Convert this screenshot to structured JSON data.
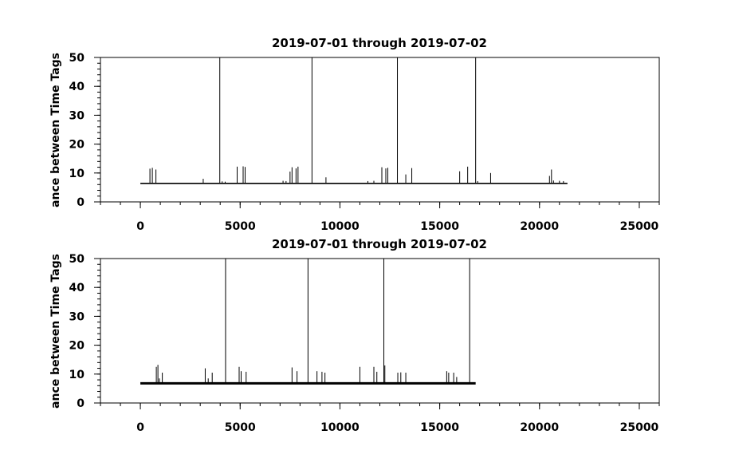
{
  "chart_data": [
    {
      "type": "line",
      "title": "2019-07-01 through 2019-07-02",
      "xlabel": "",
      "ylabel": "ance between Time Tags",
      "xlim": [
        -2000,
        26000
      ],
      "ylim": [
        0,
        50
      ],
      "x_ticks": [
        0,
        5000,
        10000,
        15000,
        20000,
        25000
      ],
      "y_ticks": [
        0,
        10,
        20,
        30,
        40,
        50
      ],
      "grid": false,
      "legend": "none",
      "series": [
        {
          "baseline": 6.4,
          "x_range": [
            0,
            21400
          ],
          "spikes": [
            {
              "x": 480,
              "y": 11.5
            },
            {
              "x": 600,
              "y": 11.8
            },
            {
              "x": 780,
              "y": 11.2
            },
            {
              "x": 3150,
              "y": 8.0
            },
            {
              "x": 3980,
              "y": 50
            },
            {
              "x": 4100,
              "y": 7.1
            },
            {
              "x": 4250,
              "y": 7.0
            },
            {
              "x": 4850,
              "y": 12.2
            },
            {
              "x": 5150,
              "y": 12.3
            },
            {
              "x": 5250,
              "y": 12.1
            },
            {
              "x": 7150,
              "y": 7.3
            },
            {
              "x": 7300,
              "y": 7.2
            },
            {
              "x": 7500,
              "y": 10.5
            },
            {
              "x": 7600,
              "y": 12.0
            },
            {
              "x": 7800,
              "y": 11.6
            },
            {
              "x": 7900,
              "y": 12.2
            },
            {
              "x": 8600,
              "y": 50
            },
            {
              "x": 9300,
              "y": 8.5
            },
            {
              "x": 11400,
              "y": 7.2
            },
            {
              "x": 11700,
              "y": 7.3
            },
            {
              "x": 12100,
              "y": 12.0
            },
            {
              "x": 12300,
              "y": 11.6
            },
            {
              "x": 12400,
              "y": 11.8
            },
            {
              "x": 12880,
              "y": 50
            },
            {
              "x": 13300,
              "y": 9.5
            },
            {
              "x": 13600,
              "y": 11.7
            },
            {
              "x": 16000,
              "y": 10.6
            },
            {
              "x": 16400,
              "y": 12.2
            },
            {
              "x": 16800,
              "y": 50
            },
            {
              "x": 16900,
              "y": 7.2
            },
            {
              "x": 17550,
              "y": 10.0
            },
            {
              "x": 20500,
              "y": 9.0
            },
            {
              "x": 20600,
              "y": 11.2
            },
            {
              "x": 20700,
              "y": 7.4
            },
            {
              "x": 21000,
              "y": 7.3
            },
            {
              "x": 21200,
              "y": 7.2
            }
          ]
        }
      ]
    },
    {
      "type": "line",
      "title": "2019-07-01 through 2019-07-02",
      "xlabel": "",
      "ylabel": "ance between Time Tags",
      "xlim": [
        -2000,
        26000
      ],
      "ylim": [
        0,
        50
      ],
      "x_ticks": [
        0,
        5000,
        10000,
        15000,
        20000,
        25000
      ],
      "y_ticks": [
        0,
        10,
        20,
        30,
        40,
        50
      ],
      "grid": false,
      "legend": "none",
      "series": [
        {
          "baseline": 6.8,
          "x_range": [
            0,
            16800
          ],
          "spikes": [
            {
              "x": 800,
              "y": 12.5
            },
            {
              "x": 880,
              "y": 13.2
            },
            {
              "x": 950,
              "y": 8.5
            },
            {
              "x": 1100,
              "y": 10.5
            },
            {
              "x": 3250,
              "y": 12.0
            },
            {
              "x": 3400,
              "y": 8.5
            },
            {
              "x": 3600,
              "y": 10.5
            },
            {
              "x": 4270,
              "y": 50
            },
            {
              "x": 4950,
              "y": 12.5
            },
            {
              "x": 5050,
              "y": 11.0
            },
            {
              "x": 5300,
              "y": 10.8
            },
            {
              "x": 7600,
              "y": 12.3
            },
            {
              "x": 7850,
              "y": 11.0
            },
            {
              "x": 8400,
              "y": 50
            },
            {
              "x": 8850,
              "y": 11.0
            },
            {
              "x": 9100,
              "y": 10.8
            },
            {
              "x": 9250,
              "y": 10.5
            },
            {
              "x": 11000,
              "y": 12.5
            },
            {
              "x": 11700,
              "y": 12.5
            },
            {
              "x": 11850,
              "y": 10.8
            },
            {
              "x": 12200,
              "y": 50
            },
            {
              "x": 12250,
              "y": 13.0
            },
            {
              "x": 12900,
              "y": 10.5
            },
            {
              "x": 13050,
              "y": 10.6
            },
            {
              "x": 13300,
              "y": 10.5
            },
            {
              "x": 15350,
              "y": 11.0
            },
            {
              "x": 15450,
              "y": 10.5
            },
            {
              "x": 15700,
              "y": 10.5
            },
            {
              "x": 15850,
              "y": 9.0
            },
            {
              "x": 16500,
              "y": 50
            }
          ]
        }
      ]
    }
  ]
}
